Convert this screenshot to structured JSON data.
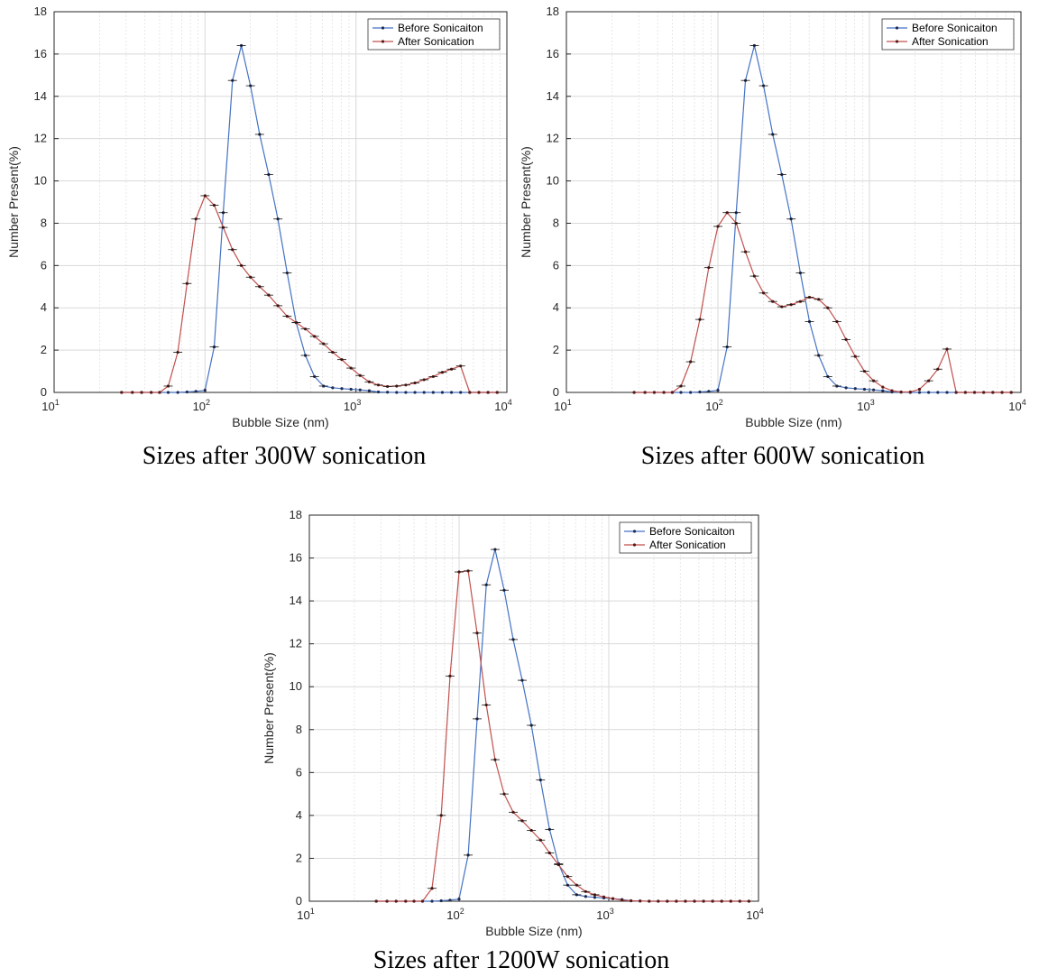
{
  "captions": [
    "Sizes after 300W sonication",
    "Sizes after 600W sonication",
    "Sizes after 1200W sonication"
  ],
  "colors": {
    "before": "#4472C4",
    "after": "#C0504D",
    "grid": "#d9d9d9",
    "axis": "#262626"
  },
  "chart_data": [
    {
      "type": "line",
      "xscale": "log",
      "xlim": [
        10,
        10000
      ],
      "ylim": [
        0,
        18
      ],
      "xticks": [
        10,
        100,
        1000,
        10000
      ],
      "yticks": [
        0,
        2,
        4,
        6,
        8,
        10,
        12,
        14,
        16,
        18
      ],
      "grid": true,
      "legend": "top-right",
      "xlabel": "Bubble Size (nm)",
      "ylabel": "Number Present(%)",
      "series": [
        {
          "name": "Before Sonicaiton",
          "x": [
            28,
            33,
            38,
            44,
            50,
            57,
            66,
            76,
            87,
            100,
            115,
            132,
            152,
            174,
            200,
            230,
            264,
            304,
            350,
            402,
            462,
            531,
            610,
            701,
            806,
            927,
            1065,
            1225,
            1408,
            1618,
            1861,
            2139,
            2459,
            2827,
            3250,
            3736,
            4295,
            4938,
            5676,
            6526,
            7502,
            8624
          ],
          "y": [
            0,
            0,
            0,
            0,
            0,
            0,
            0,
            0.02,
            0.05,
            0.1,
            2.15,
            8.5,
            14.75,
            16.4,
            14.5,
            12.2,
            10.3,
            8.2,
            5.65,
            3.3,
            1.75,
            0.75,
            0.3,
            0.22,
            0.18,
            0.15,
            0.12,
            0.08,
            0.02,
            0.01,
            0,
            0,
            0,
            0,
            0,
            0,
            0,
            0,
            0,
            0,
            0,
            0
          ]
        },
        {
          "name": "After Sonication",
          "x": [
            28,
            33,
            38,
            44,
            50,
            57,
            66,
            76,
            87,
            100,
            115,
            132,
            152,
            174,
            200,
            230,
            264,
            304,
            350,
            402,
            462,
            531,
            610,
            701,
            806,
            927,
            1065,
            1225,
            1408,
            1618,
            1861,
            2139,
            2459,
            2827,
            3250,
            3736,
            4295,
            4938,
            5676,
            6526,
            7502,
            8624
          ],
          "y": [
            0,
            0,
            0,
            0,
            0,
            0.3,
            1.9,
            5.15,
            8.2,
            9.3,
            8.85,
            7.8,
            6.75,
            6.0,
            5.45,
            5.0,
            4.6,
            4.1,
            3.6,
            3.3,
            3.0,
            2.65,
            2.3,
            1.9,
            1.55,
            1.15,
            0.8,
            0.5,
            0.35,
            0.28,
            0.3,
            0.35,
            0.45,
            0.6,
            0.75,
            0.95,
            1.1,
            1.25,
            0,
            0,
            0,
            0
          ]
        }
      ]
    },
    {
      "type": "line",
      "xscale": "log",
      "xlim": [
        10,
        10000
      ],
      "ylim": [
        0,
        18
      ],
      "xticks": [
        10,
        100,
        1000,
        10000
      ],
      "yticks": [
        0,
        2,
        4,
        6,
        8,
        10,
        12,
        14,
        16,
        18
      ],
      "grid": true,
      "legend": "top-right",
      "xlabel": "Bubble Size (nm)",
      "ylabel": "Number Present(%)",
      "series": [
        {
          "name": "Before Sonicaiton",
          "x": [
            28,
            33,
            38,
            44,
            50,
            57,
            66,
            76,
            87,
            100,
            115,
            132,
            152,
            174,
            200,
            230,
            264,
            304,
            350,
            402,
            462,
            531,
            610,
            701,
            806,
            927,
            1065,
            1225,
            1408,
            1618,
            1861,
            2139,
            2459,
            2827,
            3250,
            3736,
            4295,
            4938,
            5676,
            6526,
            7502,
            8624
          ],
          "y": [
            0,
            0,
            0,
            0,
            0,
            0,
            0,
            0.02,
            0.05,
            0.1,
            2.15,
            8.5,
            14.75,
            16.4,
            14.5,
            12.2,
            10.3,
            8.2,
            5.65,
            3.35,
            1.75,
            0.75,
            0.3,
            0.22,
            0.18,
            0.15,
            0.12,
            0.08,
            0.02,
            0.01,
            0,
            0,
            0,
            0,
            0,
            0,
            0,
            0,
            0,
            0,
            0,
            0
          ]
        },
        {
          "name": "After Sonication",
          "x": [
            28,
            33,
            38,
            44,
            50,
            57,
            66,
            76,
            87,
            100,
            115,
            132,
            152,
            174,
            200,
            230,
            264,
            304,
            350,
            402,
            462,
            531,
            610,
            701,
            806,
            927,
            1065,
            1225,
            1408,
            1618,
            1861,
            2139,
            2459,
            2827,
            3250,
            3736,
            4295,
            4938,
            5676,
            6526,
            7502,
            8624
          ],
          "y": [
            0,
            0,
            0,
            0,
            0,
            0.3,
            1.45,
            3.45,
            5.9,
            7.85,
            8.5,
            8.0,
            6.65,
            5.5,
            4.7,
            4.3,
            4.05,
            4.15,
            4.3,
            4.5,
            4.4,
            4.0,
            3.35,
            2.5,
            1.7,
            1.0,
            0.55,
            0.25,
            0.08,
            0.02,
            0.02,
            0.15,
            0.55,
            1.1,
            2.05,
            0,
            0,
            0,
            0,
            0,
            0,
            0
          ]
        }
      ]
    },
    {
      "type": "line",
      "xscale": "log",
      "xlim": [
        10,
        10000
      ],
      "ylim": [
        0,
        18
      ],
      "xticks": [
        10,
        100,
        1000,
        10000
      ],
      "yticks": [
        0,
        2,
        4,
        6,
        8,
        10,
        12,
        14,
        16,
        18
      ],
      "grid": true,
      "legend": "top-right",
      "xlabel": "Bubble Size (nm)",
      "ylabel": "Number Present(%)",
      "series": [
        {
          "name": "Before Sonicaiton",
          "x": [
            28,
            33,
            38,
            44,
            50,
            57,
            66,
            76,
            87,
            100,
            115,
            132,
            152,
            174,
            200,
            230,
            264,
            304,
            350,
            402,
            462,
            531,
            610,
            701,
            806,
            927,
            1065,
            1225,
            1408,
            1618,
            1861,
            2139,
            2459,
            2827,
            3250,
            3736,
            4295,
            4938,
            5676,
            6526,
            7502,
            8624
          ],
          "y": [
            0,
            0,
            0,
            0,
            0,
            0,
            0,
            0.02,
            0.05,
            0.1,
            2.15,
            8.5,
            14.75,
            16.4,
            14.5,
            12.2,
            10.3,
            8.2,
            5.65,
            3.35,
            1.75,
            0.75,
            0.3,
            0.22,
            0.18,
            0.15,
            0.12,
            0.08,
            0.02,
            0.01,
            0,
            0,
            0,
            0,
            0,
            0,
            0,
            0,
            0,
            0,
            0,
            0
          ]
        },
        {
          "name": "After Sonication",
          "x": [
            28,
            33,
            38,
            44,
            50,
            57,
            66,
            76,
            87,
            100,
            115,
            132,
            152,
            174,
            200,
            230,
            264,
            304,
            350,
            402,
            462,
            531,
            610,
            701,
            806,
            927,
            1065,
            1225,
            1408,
            1618,
            1861,
            2139,
            2459,
            2827,
            3250,
            3736,
            4295,
            4938,
            5676,
            6526,
            7502,
            8624
          ],
          "y": [
            0,
            0,
            0,
            0,
            0,
            0,
            0.6,
            4.0,
            10.5,
            15.35,
            15.4,
            12.5,
            9.15,
            6.6,
            5.0,
            4.15,
            3.75,
            3.3,
            2.85,
            2.25,
            1.7,
            1.15,
            0.75,
            0.45,
            0.3,
            0.2,
            0.12,
            0.05,
            0.02,
            0.01,
            0,
            0,
            0,
            0,
            0,
            0,
            0,
            0,
            0,
            0,
            0,
            0
          ]
        }
      ]
    }
  ]
}
